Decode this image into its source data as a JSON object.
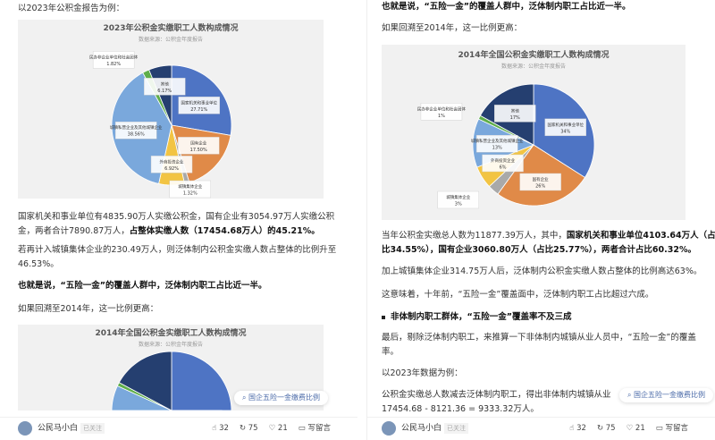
{
  "left": {
    "intro": "以2023年公积金报告为例：",
    "p1a": "国家机关和事业单位有4835.90万人实缴公积金，国有企业有3054.97万人实缴公积",
    "p1b": "金，两者合计7890.87万人，",
    "p1b_bold": "占整体实缴人数（17454.68万人）的45.21%。",
    "p2a": "若再计入城镇集体企业的230.49万人，则泛体制内公积金实缴人数占整体的比例升至",
    "p2b": "46.53%。",
    "p3": "也就是说，“五险一金”的覆盖人群中，泛体制内职工占比近一半。",
    "p4": "如果回溯至2014年，这一比例更高：",
    "search_chip": "国企五险一金缴费比例"
  },
  "right": {
    "p0": "也就是说，“五险一金”的覆盖人群中，泛体制内职工占比近一半。",
    "p1": "如果回溯至2014年，这一比例更高：",
    "p2a": "当年公积金实缴总人数为11877.39万人，其中，",
    "p2a_bold": "国家机关和事业单位4103.64万人（占",
    "p2b_bold": "比34.55%），国有企业3060.80万人（占比25.77%），两者合计占比60.32%。",
    "p3": "加上城镇集体企业314.75万人后，泛体制内公积金实缴人数占整体的比例高达63%。",
    "p4": "这意味着，十年前，“五险一金”覆盖面中，泛体制内职工占比超过六成。",
    "h1": "非体制内职工群体，“五险一金”覆盖率不及三成",
    "p5a": "最后，剔除泛体制内职工，来推算一下非体制内城镇从业人员中，“五险一金”的覆盖",
    "p5b": "率。",
    "p6": "以2023年数据为例：",
    "p7a": "公积金实缴总人数减去泛体制内职工，得出非体制内城镇从业",
    "p7b": "17454.68 - 8121.36 = 9333.32万人。",
    "search_chip": "国企五险一金缴费比例"
  },
  "footer": {
    "author": "公民马小白",
    "follow": "已关注",
    "likes": "32",
    "shares": "75",
    "favs": "21",
    "comment": "写留言"
  },
  "chart_data": [
    {
      "type": "pie",
      "title": "2023年公积金实缴职工人数构成情况",
      "subtitle": "数据来源：公积金年度报告",
      "labels": [
        "国家机关和事业单位",
        "国有企业",
        "城镇集体企业",
        "外商投资企业",
        "城镇私营企业及其他城镇企业",
        "民办非企业单位和社会团体",
        "其他"
      ],
      "values": [
        27.71,
        17.5,
        1.32,
        6.92,
        38.56,
        1.82,
        6.17
      ],
      "value_labels": [
        "27.71%",
        "17.50%",
        "1.32%",
        "6.92%",
        "38.56%",
        "1.82%",
        "6.17%"
      ],
      "colors": [
        "#4e74c4",
        "#e08a48",
        "#a9a9a9",
        "#f2c443",
        "#7aa8dc",
        "#5fae4a",
        "#253f70"
      ]
    },
    {
      "type": "pie",
      "title": "2014年全国公积金实缴职工人数构成情况",
      "subtitle": "数据来源：公积金年度报告",
      "labels": [
        "国家机关和事业单位",
        "国有企业",
        "城镇集体企业",
        "外商投资企业",
        "城镇私营企业及其他城镇企业",
        "民办非企业单位和社会团体",
        "其他"
      ],
      "values": [
        34,
        26,
        3,
        6,
        13,
        1,
        17
      ],
      "value_labels": [
        "34%",
        "26%",
        "3%",
        "6%",
        "13%",
        "1%",
        "17%"
      ],
      "colors": [
        "#4e74c4",
        "#e08a48",
        "#a9a9a9",
        "#f2c443",
        "#7aa8dc",
        "#5fae4a",
        "#253f70"
      ]
    }
  ]
}
